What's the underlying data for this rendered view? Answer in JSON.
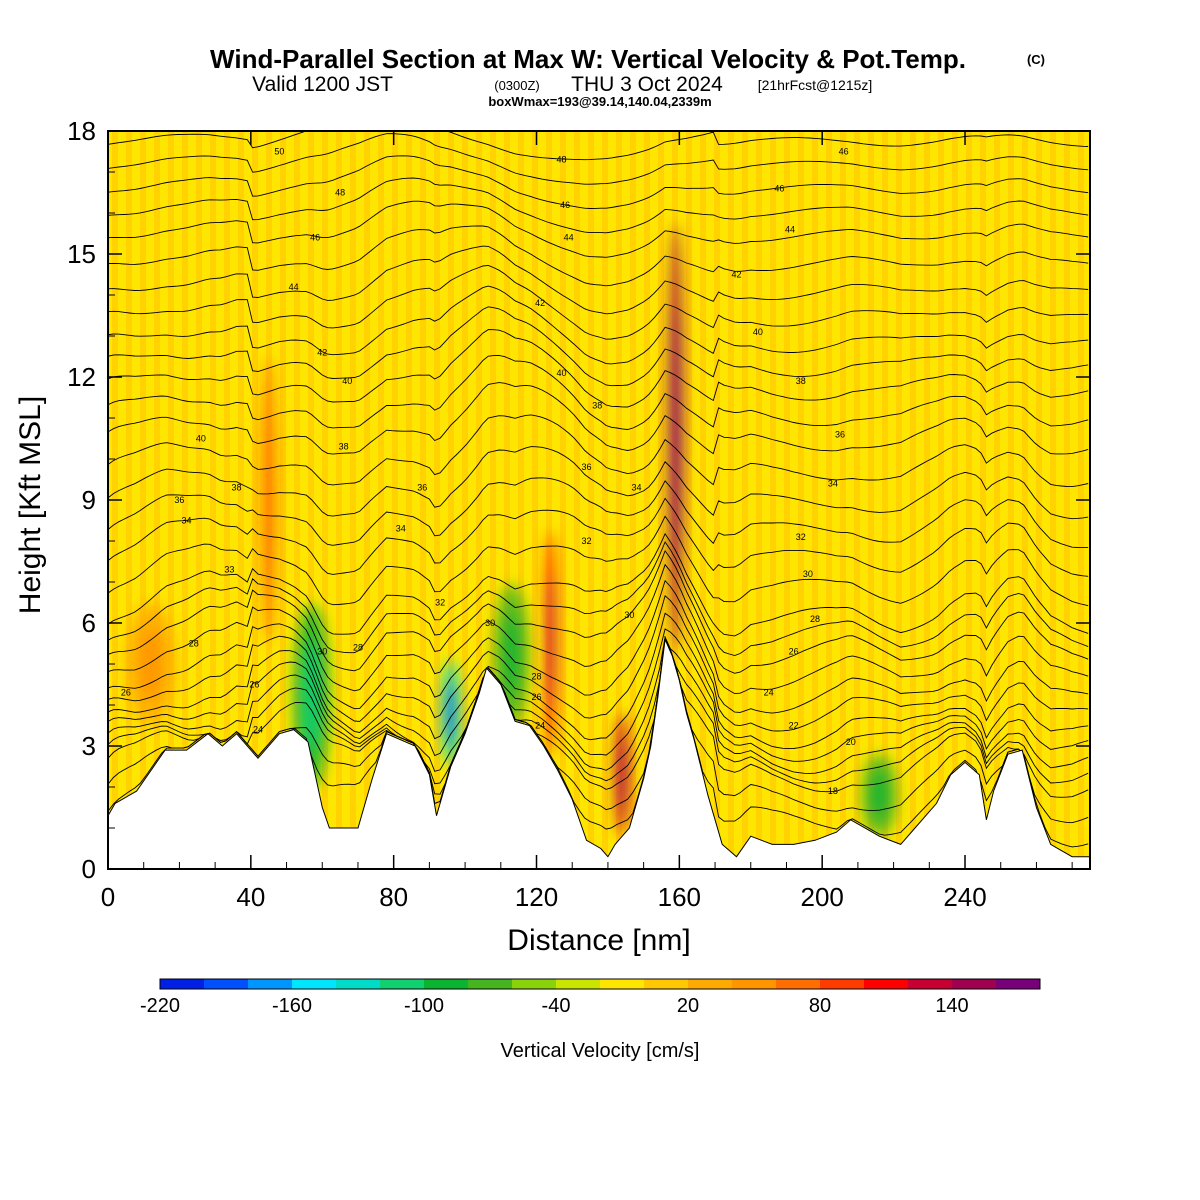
{
  "title": {
    "main": "Wind-Parallel Section at Max W: Vertical Velocity & Pot.Temp.",
    "copyright": "(C)",
    "valid_prefix": "Valid 1200 JST",
    "utc": "(0300Z)",
    "valid_date": "THU 3 Oct 2024",
    "forecast": "[21hrFcst@1215z]",
    "boxwmax": "boxWmax=193@39.14,140.04,2339m"
  },
  "chart_data": {
    "type": "heatmap",
    "title": "Wind-Parallel Section at Max W: Vertical Velocity & Pot.Temp.",
    "xlabel": "Distance [nm]",
    "ylabel": "Height [Kft MSL]",
    "xlim": [
      0,
      275
    ],
    "ylim": [
      0,
      18
    ],
    "x_ticks": [
      0,
      40,
      80,
      120,
      160,
      200,
      240
    ],
    "y_ticks": [
      0,
      3,
      6,
      9,
      12,
      15,
      18
    ],
    "x_tick_labels": [
      "0",
      "40",
      "80",
      "120",
      "160",
      "200",
      "240"
    ],
    "y_tick_labels": [
      "0",
      "3",
      "6",
      "9",
      "12",
      "15",
      "18"
    ],
    "terrain_kft": [
      [
        0,
        1.3
      ],
      [
        2,
        1.6
      ],
      [
        8,
        1.9
      ],
      [
        16,
        2.9
      ],
      [
        22,
        2.9
      ],
      [
        28,
        3.3
      ],
      [
        32,
        3.0
      ],
      [
        36,
        3.3
      ],
      [
        42,
        2.7
      ],
      [
        48,
        3.3
      ],
      [
        52,
        3.4
      ],
      [
        56,
        3.1
      ],
      [
        60,
        1.5
      ],
      [
        62,
        1.0
      ],
      [
        70,
        1.0
      ],
      [
        74,
        2.2
      ],
      [
        78,
        3.3
      ],
      [
        86,
        3.0
      ],
      [
        90,
        2.3
      ],
      [
        92,
        1.3
      ],
      [
        96,
        2.5
      ],
      [
        100,
        3.3
      ],
      [
        104,
        4.3
      ],
      [
        106,
        4.9
      ],
      [
        110,
        4.5
      ],
      [
        114,
        3.6
      ],
      [
        118,
        3.5
      ],
      [
        122,
        3.0
      ],
      [
        126,
        2.4
      ],
      [
        130,
        1.7
      ],
      [
        134,
        0.7
      ],
      [
        138,
        0.5
      ],
      [
        140,
        0.3
      ],
      [
        142,
        0.6
      ],
      [
        144,
        0.8
      ],
      [
        146,
        1.0
      ],
      [
        148,
        1.6
      ],
      [
        150,
        2.2
      ],
      [
        152,
        3.0
      ],
      [
        154,
        4.2
      ],
      [
        156,
        5.6
      ],
      [
        158,
        5.2
      ],
      [
        160,
        4.6
      ],
      [
        162,
        3.8
      ],
      [
        164,
        3.2
      ],
      [
        166,
        2.5
      ],
      [
        168,
        1.8
      ],
      [
        172,
        0.6
      ],
      [
        176,
        0.3
      ],
      [
        180,
        0.8
      ],
      [
        186,
        0.6
      ],
      [
        192,
        0.6
      ],
      [
        198,
        0.7
      ],
      [
        204,
        0.9
      ],
      [
        208,
        1.2
      ],
      [
        216,
        0.8
      ],
      [
        222,
        0.6
      ],
      [
        226,
        1.0
      ],
      [
        232,
        1.6
      ],
      [
        236,
        2.3
      ],
      [
        240,
        2.6
      ],
      [
        244,
        2.3
      ],
      [
        246,
        1.2
      ],
      [
        248,
        1.9
      ],
      [
        252,
        2.8
      ],
      [
        256,
        2.9
      ],
      [
        260,
        1.5
      ],
      [
        264,
        0.6
      ],
      [
        270,
        0.3
      ],
      [
        275,
        0.3
      ]
    ],
    "w_cells_cms": [
      {
        "x": 57,
        "y": 4.2,
        "w": -90,
        "width": 10,
        "height": 4.5
      },
      {
        "x": 96,
        "y": 3.8,
        "w": -140,
        "width": 5,
        "height": 2.6
      },
      {
        "x": 113,
        "y": 5.2,
        "w": -70,
        "width": 10,
        "height": 3.5
      },
      {
        "x": 216,
        "y": 1.8,
        "w": -70,
        "width": 10,
        "height": 2.0
      },
      {
        "x": 124,
        "y": 5.5,
        "w": 110,
        "width": 3,
        "height": 5.5
      },
      {
        "x": 144,
        "y": 2.3,
        "w": 120,
        "width": 4,
        "height": 3.0
      },
      {
        "x": 159,
        "y": 10.5,
        "w": 150,
        "width": 4,
        "height": 10.5
      },
      {
        "x": 12,
        "y": 5.0,
        "w": 35,
        "width": 14,
        "height": 3.0
      },
      {
        "x": 45,
        "y": 9.0,
        "w": 60,
        "width": 4,
        "height": 7.0
      }
    ],
    "theta_contours_c": [
      {
        "value": 18,
        "y": 2.0
      },
      {
        "value": 20,
        "y": 3.0
      },
      {
        "value": 22,
        "y": 3.5
      },
      {
        "value": 24,
        "y": 4.1
      },
      {
        "value": 26,
        "y": 4.9
      },
      {
        "value": 28,
        "y": 5.9
      },
      {
        "value": 30,
        "y": 6.7
      },
      {
        "value": 32,
        "y": 8.1
      },
      {
        "value": 34,
        "y": 9.4
      },
      {
        "value": 36,
        "y": 10.8
      },
      {
        "value": 38,
        "y": 12.0
      },
      {
        "value": 40,
        "y": 13.1
      },
      {
        "value": 42,
        "y": 14.3
      },
      {
        "value": 44,
        "y": 15.6
      },
      {
        "value": 46,
        "y": 16.7
      },
      {
        "value": 48,
        "y": 17.8
      }
    ],
    "contour_labels": [
      {
        "x": 5,
        "y": 4.3,
        "text": "26"
      },
      {
        "x": 20,
        "y": 9.0,
        "text": "36"
      },
      {
        "x": 22,
        "y": 8.5,
        "text": "34"
      },
      {
        "x": 26,
        "y": 10.5,
        "text": "40"
      },
      {
        "x": 34,
        "y": 7.3,
        "text": "33"
      },
      {
        "x": 24,
        "y": 5.5,
        "text": "28"
      },
      {
        "x": 42,
        "y": 3.4,
        "text": "24"
      },
      {
        "x": 41,
        "y": 4.5,
        "text": "26"
      },
      {
        "x": 36,
        "y": 9.3,
        "text": "38"
      },
      {
        "x": 60,
        "y": 5.3,
        "text": "30"
      },
      {
        "x": 70,
        "y": 5.4,
        "text": "28"
      },
      {
        "x": 48,
        "y": 17.5,
        "text": "50"
      },
      {
        "x": 65,
        "y": 16.5,
        "text": "48"
      },
      {
        "x": 58,
        "y": 15.4,
        "text": "46"
      },
      {
        "x": 52,
        "y": 14.2,
        "text": "44"
      },
      {
        "x": 60,
        "y": 12.6,
        "text": "42"
      },
      {
        "x": 67,
        "y": 11.9,
        "text": "40"
      },
      {
        "x": 66,
        "y": 10.3,
        "text": "38"
      },
      {
        "x": 88,
        "y": 9.3,
        "text": "36"
      },
      {
        "x": 82,
        "y": 8.3,
        "text": "34"
      },
      {
        "x": 93,
        "y": 6.5,
        "text": "32"
      },
      {
        "x": 107,
        "y": 6.0,
        "text": "30"
      },
      {
        "x": 120,
        "y": 4.7,
        "text": "28"
      },
      {
        "x": 120,
        "y": 4.2,
        "text": "26"
      },
      {
        "x": 121,
        "y": 3.5,
        "text": "24"
      },
      {
        "x": 127,
        "y": 17.3,
        "text": "48"
      },
      {
        "x": 128,
        "y": 16.2,
        "text": "46"
      },
      {
        "x": 129,
        "y": 15.4,
        "text": "44"
      },
      {
        "x": 121,
        "y": 13.8,
        "text": "42"
      },
      {
        "x": 127,
        "y": 12.1,
        "text": "40"
      },
      {
        "x": 137,
        "y": 11.3,
        "text": "38"
      },
      {
        "x": 134,
        "y": 9.8,
        "text": "36"
      },
      {
        "x": 148,
        "y": 9.3,
        "text": "34"
      },
      {
        "x": 134,
        "y": 8.0,
        "text": "32"
      },
      {
        "x": 146,
        "y": 6.2,
        "text": "30"
      },
      {
        "x": 206,
        "y": 17.5,
        "text": "46"
      },
      {
        "x": 188,
        "y": 16.6,
        "text": "46"
      },
      {
        "x": 191,
        "y": 15.6,
        "text": "44"
      },
      {
        "x": 176,
        "y": 14.5,
        "text": "42"
      },
      {
        "x": 182,
        "y": 13.1,
        "text": "40"
      },
      {
        "x": 194,
        "y": 11.9,
        "text": "38"
      },
      {
        "x": 205,
        "y": 10.6,
        "text": "36"
      },
      {
        "x": 203,
        "y": 9.4,
        "text": "34"
      },
      {
        "x": 194,
        "y": 8.1,
        "text": "32"
      },
      {
        "x": 196,
        "y": 7.2,
        "text": "30"
      },
      {
        "x": 198,
        "y": 6.1,
        "text": "28"
      },
      {
        "x": 192,
        "y": 5.3,
        "text": "26"
      },
      {
        "x": 185,
        "y": 4.3,
        "text": "24"
      },
      {
        "x": 192,
        "y": 3.5,
        "text": "22"
      },
      {
        "x": 208,
        "y": 3.1,
        "text": "20"
      },
      {
        "x": 203,
        "y": 1.9,
        "text": "18"
      }
    ],
    "colorbar": {
      "label": "Vertical Velocity [cm/s]",
      "levels": [
        -220,
        -200,
        -180,
        -160,
        -140,
        -120,
        -100,
        -80,
        -60,
        -40,
        -20,
        0,
        20,
        40,
        60,
        80,
        100,
        120,
        140,
        160,
        180
      ],
      "colors": [
        "#0020e6",
        "#0050ff",
        "#0096ff",
        "#00e6ff",
        "#00dcc8",
        "#10d070",
        "#0ab430",
        "#46b41e",
        "#8ad20a",
        "#c8e600",
        "#ffe600",
        "#ffc800",
        "#ffaa00",
        "#ff9600",
        "#ff6e00",
        "#ff3c00",
        "#ff0000",
        "#c80032",
        "#a00050",
        "#780078"
      ],
      "tick_values": [
        -220,
        -160,
        -100,
        -40,
        20,
        80,
        140
      ],
      "tick_labels": [
        "-220",
        "-160",
        "-100",
        "-40",
        "20",
        "80",
        "140"
      ]
    }
  }
}
